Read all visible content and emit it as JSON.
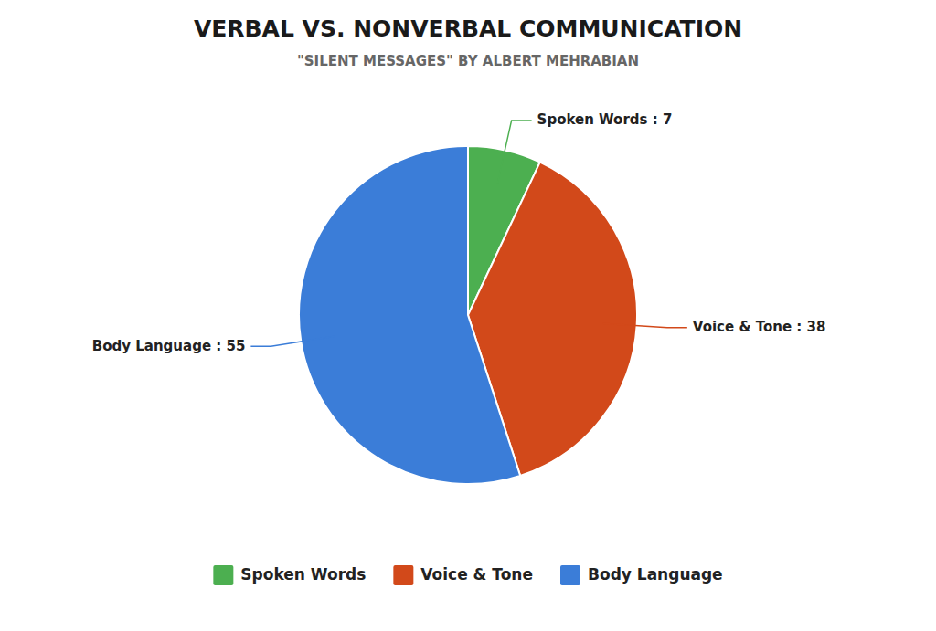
{
  "chart_data": {
    "type": "pie",
    "title": "VERBAL VS. NONVERBAL COMMUNICATION",
    "subtitle": "\"SILENT MESSAGES\" BY ALBERT MEHRABIAN",
    "categories": [
      "Spoken Words",
      "Voice & Tone",
      "Body Language"
    ],
    "values": [
      7,
      38,
      55
    ],
    "colors": [
      "#4caf50",
      "#d2491a",
      "#3b7dd8"
    ],
    "annotations": [
      "Spoken Words : 7",
      "Voice & Tone : 38",
      "Body Language : 55"
    ],
    "legend": "bottom"
  }
}
